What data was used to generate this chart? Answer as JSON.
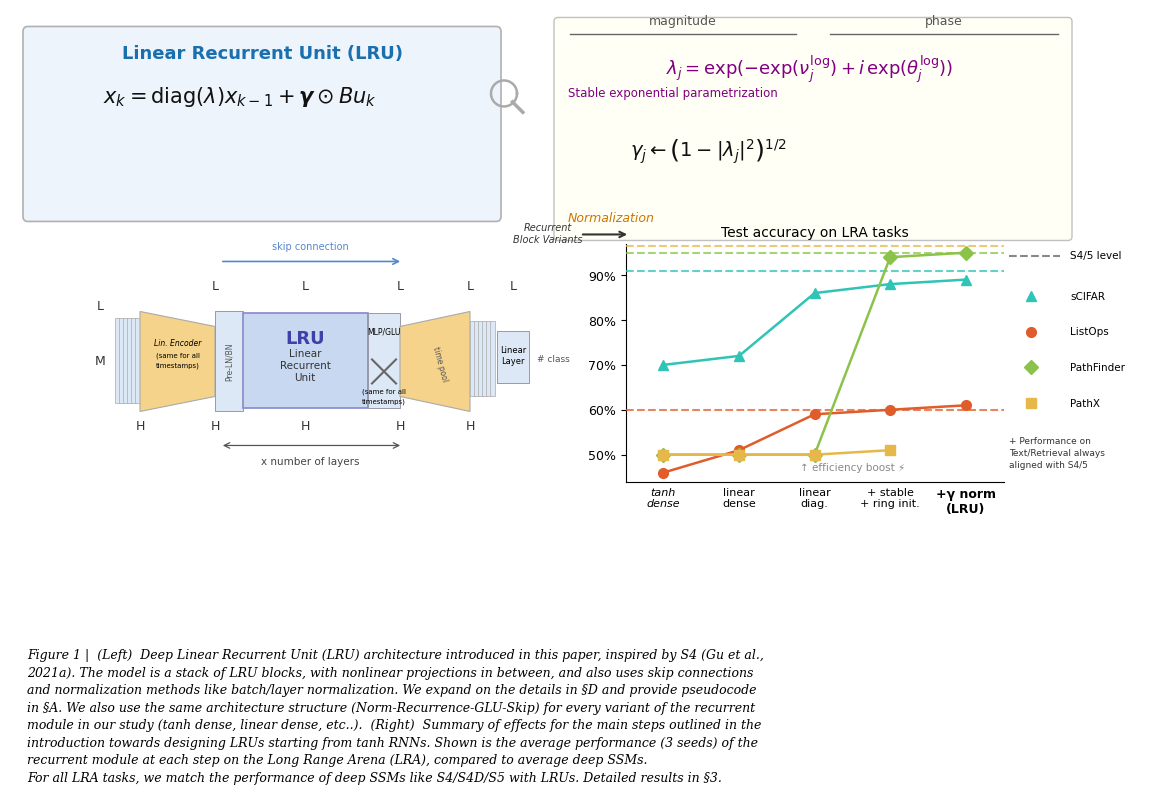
{
  "background_color": "#ffffff",
  "fig_width": 10.8,
  "fig_height": 7.32,
  "chart": {
    "title": "Test accuracy on LRA tasks",
    "x_labels": [
      "tanh\ndense",
      "linear\ndense",
      "linear\ndiag.",
      "+ stable\n+ ring init.",
      "+γ norm\n(LRU)"
    ],
    "ylim": [
      44,
      97
    ],
    "yticks": [
      50,
      60,
      70,
      80,
      90
    ],
    "ytick_labels": [
      "50%",
      "60%",
      "70%",
      "80%",
      "90%"
    ],
    "sCIFAR_vals": [
      70,
      72,
      86,
      88,
      89
    ],
    "sCIFAR_s4": 91,
    "sCIFAR_color": "#2ec4b6",
    "ListOps_vals": [
      46,
      51,
      59,
      60,
      61
    ],
    "ListOps_s4": 60,
    "ListOps_color": "#e05c2a",
    "PathFinder_vals": [
      50,
      50,
      50,
      94,
      95
    ],
    "PathFinder_s4": 95,
    "PathFinder_color": "#8bc34a",
    "PathX_vals": [
      50,
      50,
      50,
      51,
      null
    ],
    "PathX_s4": 96.5,
    "PathX_color": "#e6b84a"
  },
  "caption_text": "Figure 1 |  (Left)  Deep Linear Recurrent Unit (LRU) architecture introduced in this paper, inspired by S4 (Gu et al.,\n2021a). The model is a stack of LRU blocks, with nonlinear projections in between, and also uses skip connections\nand normalization methods like batch/layer normalization. We expand on the details in §D and provide pseudocode\nin §A. We also use the same architecture structure (Norm-Recurrence-GLU-Skip) for every variant of the recurrent\nmodule in our study (tanh dense, linear dense, etc..).  (Right)  Summary of effects for the main steps outlined in the\nintroduction towards designing LRUs starting from tanh RNNs. Shown is the average performance (3 seeds) of the\nrecurrent module at each step on the Long Range Arena (LRA), compared to average deep SSMs.\nFor all LRA tasks, we match the performance of deep SSMs like S4/S4D/S5 with LRUs. Detailed results in §3."
}
